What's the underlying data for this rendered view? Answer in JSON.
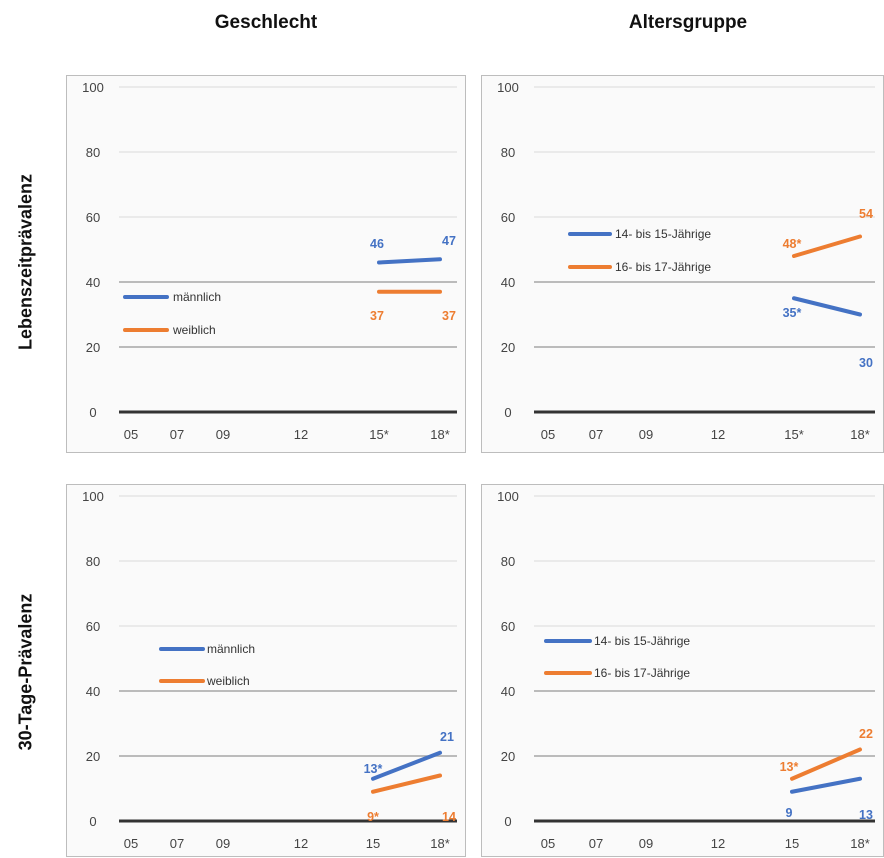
{
  "column_headers": [
    "Geschlecht",
    "Altersgruppe"
  ],
  "row_headers": [
    "Lebenszeitprävalenz",
    "30-Tage-Prävalenz"
  ],
  "colors": {
    "blue": "#4472c4",
    "orange": "#ed7d31"
  },
  "chart_data": [
    {
      "type": "line",
      "column": "Geschlecht",
      "row": "Lebenszeitprävalenz",
      "x": [
        "05",
        "07",
        "09",
        "12",
        "15*",
        "18*"
      ],
      "ylim": [
        0,
        100
      ],
      "yticks": [
        "0",
        "20",
        "40",
        "60",
        "80",
        "100"
      ],
      "grid": true,
      "legend_position": "left",
      "series": [
        {
          "name": "männlich",
          "color": "#4472c4",
          "values": [
            null,
            null,
            null,
            null,
            46,
            47
          ],
          "labels": [
            "",
            "",
            "",
            "",
            "46",
            "47"
          ]
        },
        {
          "name": "weiblich",
          "color": "#ed7d31",
          "values": [
            null,
            null,
            null,
            null,
            37,
            37
          ],
          "labels": [
            "",
            "",
            "",
            "",
            "37",
            "37"
          ]
        }
      ]
    },
    {
      "type": "line",
      "column": "Altersgruppe",
      "row": "Lebenszeitprävalenz",
      "x": [
        "05",
        "07",
        "09",
        "12",
        "15*",
        "18*"
      ],
      "ylim": [
        0,
        100
      ],
      "yticks": [
        "0",
        "20",
        "40",
        "60",
        "80",
        "100"
      ],
      "grid": true,
      "legend_position": "left",
      "series": [
        {
          "name": "14- bis 15-Jährige",
          "color": "#4472c4",
          "values": [
            null,
            null,
            null,
            null,
            35,
            30
          ],
          "labels": [
            "",
            "",
            "",
            "",
            "35*",
            "30"
          ]
        },
        {
          "name": "16- bis 17-Jährige",
          "color": "#ed7d31",
          "values": [
            null,
            null,
            null,
            null,
            48,
            54
          ],
          "labels": [
            "",
            "",
            "",
            "",
            "48*",
            "54"
          ]
        }
      ]
    },
    {
      "type": "line",
      "column": "Geschlecht",
      "row": "30-Tage-Prävalenz",
      "x": [
        "05",
        "07",
        "09",
        "12",
        "15",
        "18*"
      ],
      "ylim": [
        0,
        100
      ],
      "yticks": [
        "0",
        "20",
        "40",
        "60",
        "80",
        "100"
      ],
      "grid": true,
      "legend_position": "left",
      "series": [
        {
          "name": "männlich",
          "color": "#4472c4",
          "values": [
            null,
            null,
            null,
            null,
            13,
            21
          ],
          "labels": [
            "",
            "",
            "",
            "",
            "13*",
            "21"
          ]
        },
        {
          "name": "weiblich",
          "color": "#ed7d31",
          "values": [
            null,
            null,
            null,
            null,
            9,
            14
          ],
          "labels": [
            "",
            "",
            "",
            "",
            "9*",
            "14"
          ]
        }
      ]
    },
    {
      "type": "line",
      "column": "Altersgruppe",
      "row": "30-Tage-Prävalenz",
      "x": [
        "05",
        "07",
        "09",
        "12",
        "15",
        "18*"
      ],
      "ylim": [
        0,
        100
      ],
      "yticks": [
        "0",
        "20",
        "40",
        "60",
        "80",
        "100"
      ],
      "grid": true,
      "legend_position": "left",
      "series": [
        {
          "name": "14- bis 15-Jährige",
          "color": "#4472c4",
          "values": [
            null,
            null,
            null,
            null,
            9,
            13
          ],
          "labels": [
            "",
            "",
            "",
            "",
            "9",
            "13"
          ]
        },
        {
          "name": "16- bis 17-Jährige",
          "color": "#ed7d31",
          "values": [
            null,
            null,
            null,
            null,
            13,
            22
          ],
          "labels": [
            "",
            "",
            "",
            "",
            "13*",
            "22"
          ]
        }
      ]
    }
  ]
}
